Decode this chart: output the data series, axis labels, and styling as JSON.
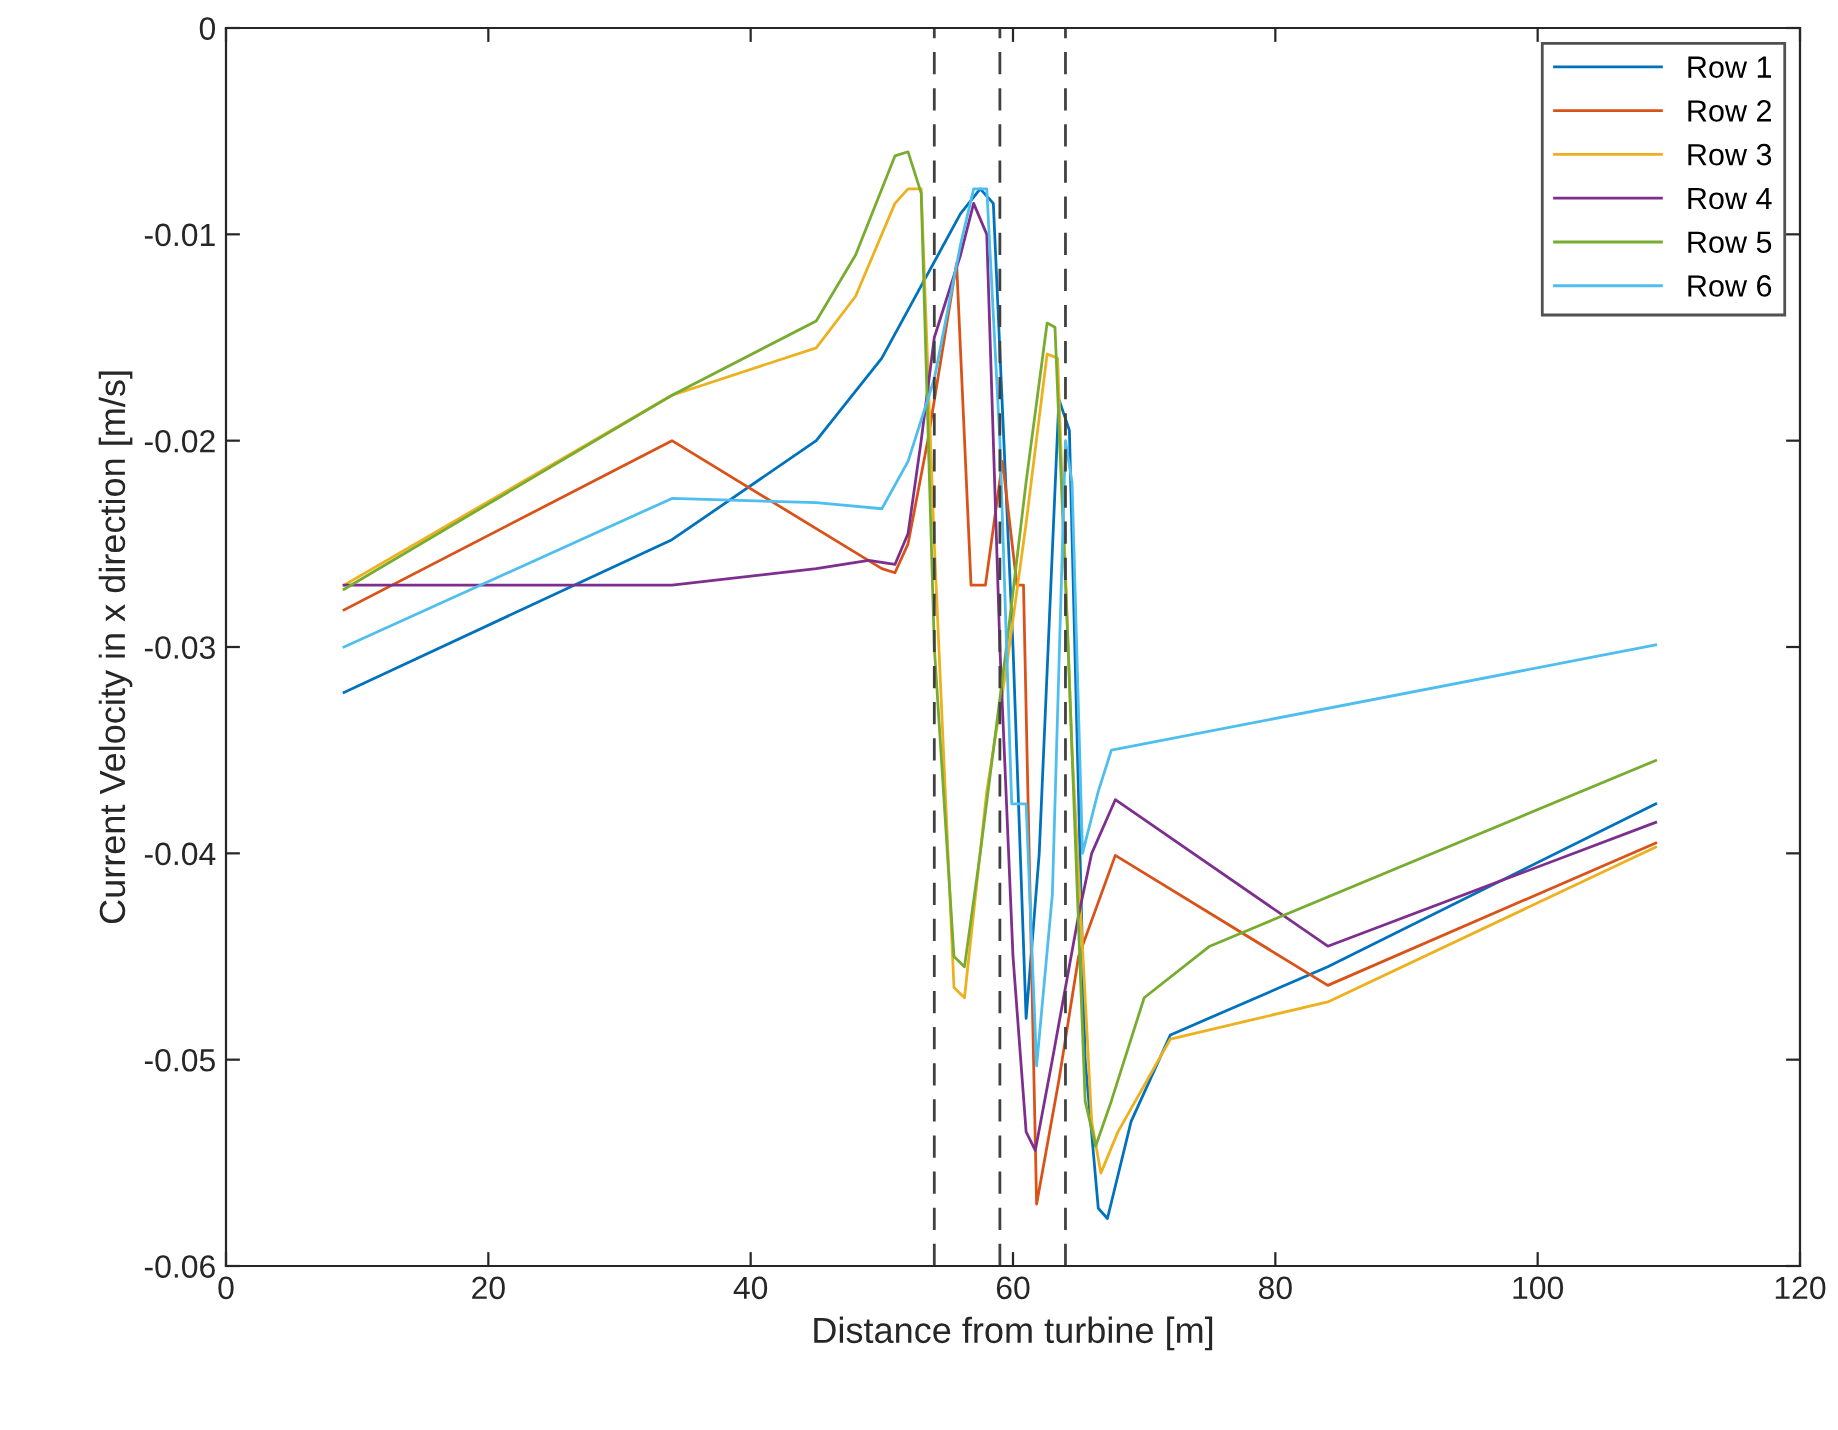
{
  "chart_data": {
    "type": "line",
    "xlabel": "Distance from turbine [m]",
    "ylabel": "Current Velocity in x direction [m/s]",
    "xlim": [
      0,
      120
    ],
    "xticks": [
      0,
      20,
      40,
      60,
      80,
      100,
      120
    ],
    "ylim": [
      -0.06,
      0
    ],
    "yticks": [
      -0.06,
      -0.05,
      -0.04,
      -0.03,
      -0.02,
      -0.01,
      0
    ],
    "grid": false,
    "legend": "top right",
    "line_style": "solid",
    "marker": "none",
    "ref_lines": [
      {
        "axis": "x",
        "value": 54,
        "color": "#404040",
        "line_style": "dashed"
      },
      {
        "axis": "x",
        "value": 59,
        "color": "#404040",
        "line_style": "dashed"
      },
      {
        "axis": "x",
        "value": 64,
        "color": "#404040",
        "line_style": "dashed"
      }
    ],
    "series": [
      {
        "name": "Row 1",
        "color": "#0072bd",
        "x": [
          9,
          34,
          45,
          50,
          53,
          56,
          57.5,
          58.5,
          60,
          61,
          62,
          63.5,
          64.3,
          65.5,
          66.5,
          67.2,
          69,
          72,
          84,
          109
        ],
        "values": [
          -0.0322,
          -0.0248,
          -0.02,
          -0.016,
          -0.0125,
          -0.009,
          -0.0078,
          -0.0085,
          -0.03,
          -0.048,
          -0.04,
          -0.018,
          -0.0195,
          -0.05,
          -0.0572,
          -0.0577,
          -0.053,
          -0.0488,
          -0.0455,
          -0.0376
        ]
      },
      {
        "name": "Row 2",
        "color": "#d95319",
        "x": [
          9,
          34,
          50,
          51,
          52,
          53.5,
          55.7,
          56.8,
          57.9,
          59.2,
          60.3,
          60.8,
          61.8,
          63.5,
          65,
          67.8,
          84,
          109
        ],
        "values": [
          -0.0282,
          -0.02,
          -0.0262,
          -0.0264,
          -0.025,
          -0.02,
          -0.0114,
          -0.027,
          -0.027,
          -0.021,
          -0.027,
          -0.027,
          -0.057,
          -0.051,
          -0.045,
          -0.0401,
          -0.0464,
          -0.0395
        ]
      },
      {
        "name": "Row 3",
        "color": "#edb120",
        "x": [
          9,
          34,
          45,
          48,
          51,
          52,
          53,
          54,
          55.5,
          56.3,
          58,
          59.5,
          61,
          62.6,
          63.4,
          64.5,
          66,
          66.7,
          68,
          72,
          84,
          109
        ],
        "values": [
          -0.027,
          -0.0178,
          -0.0155,
          -0.013,
          -0.0085,
          -0.0078,
          -0.0078,
          -0.025,
          -0.0465,
          -0.047,
          -0.037,
          -0.031,
          -0.024,
          -0.0158,
          -0.016,
          -0.035,
          -0.053,
          -0.0555,
          -0.0535,
          -0.049,
          -0.0472,
          -0.0397
        ]
      },
      {
        "name": "Row 4",
        "color": "#7e2f8e",
        "x": [
          9,
          34,
          45,
          49,
          51,
          52,
          53,
          54,
          56,
          57,
          58,
          59,
          60,
          61,
          61.7,
          63,
          65,
          66,
          67.8,
          84,
          109
        ],
        "values": [
          -0.027,
          -0.027,
          -0.0262,
          -0.0258,
          -0.026,
          -0.0245,
          -0.02,
          -0.015,
          -0.011,
          -0.0085,
          -0.01,
          -0.03,
          -0.045,
          -0.0535,
          -0.0544,
          -0.05,
          -0.043,
          -0.04,
          -0.0374,
          -0.0445,
          -0.0385
        ]
      },
      {
        "name": "Row 5",
        "color": "#77ac30",
        "x": [
          9,
          34,
          45,
          48,
          51,
          52,
          53,
          54,
          55.5,
          56.3,
          57.5,
          59.5,
          61,
          62.6,
          63.2,
          64.2,
          65.5,
          66.3,
          67.5,
          70,
          75,
          109
        ],
        "values": [
          -0.0272,
          -0.0178,
          -0.0142,
          -0.011,
          -0.0062,
          -0.006,
          -0.008,
          -0.03,
          -0.045,
          -0.0455,
          -0.04,
          -0.03,
          -0.022,
          -0.0143,
          -0.0145,
          -0.03,
          -0.052,
          -0.0542,
          -0.052,
          -0.047,
          -0.0445,
          -0.0355
        ]
      },
      {
        "name": "Row 6",
        "color": "#4dbeee",
        "x": [
          9,
          34,
          45,
          50,
          52,
          54,
          56,
          57,
          58,
          59,
          59.9,
          61,
          61.8,
          63,
          64,
          64.5,
          65.3,
          66.5,
          67.5,
          109
        ],
        "values": [
          -0.03,
          -0.0228,
          -0.023,
          -0.0233,
          -0.021,
          -0.017,
          -0.0105,
          -0.0078,
          -0.0078,
          -0.02,
          -0.0376,
          -0.0376,
          -0.0503,
          -0.042,
          -0.02,
          -0.022,
          -0.04,
          -0.037,
          -0.035,
          -0.0299
        ]
      }
    ]
  }
}
